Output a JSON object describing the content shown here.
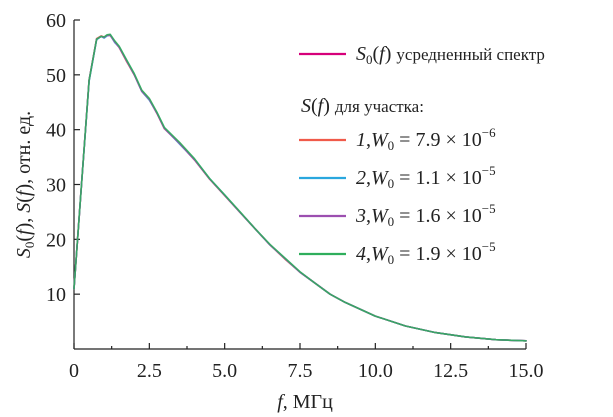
{
  "chart_data": {
    "type": "line",
    "xlabel_italic": "f",
    "xlabel_rest": ", МГц",
    "ylabel": "S0(f), S(f), отн. ед.",
    "xlim": [
      0,
      15
    ],
    "ylim": [
      0,
      60
    ],
    "x_ticks": [
      {
        "value": 0,
        "label": "0"
      },
      {
        "value": 2.5,
        "label": "2.5"
      },
      {
        "value": 5,
        "label": "5.0"
      },
      {
        "value": 7.5,
        "label": "7.5"
      },
      {
        "value": 10,
        "label": "10.0"
      },
      {
        "value": 12.5,
        "label": "12.5"
      },
      {
        "value": 15,
        "label": "15.0"
      }
    ],
    "y_ticks": [
      {
        "value": 10,
        "label": "10"
      },
      {
        "value": 20,
        "label": "20"
      },
      {
        "value": 30,
        "label": "30"
      },
      {
        "value": 40,
        "label": "40"
      },
      {
        "value": 50,
        "label": "50"
      },
      {
        "value": 60,
        "label": "60"
      }
    ],
    "x": [
      0,
      0.25,
      0.5,
      0.75,
      0.9,
      1.0,
      1.1,
      1.2,
      1.35,
      1.5,
      1.75,
      2.0,
      2.25,
      2.5,
      2.75,
      3.0,
      3.5,
      4.0,
      4.5,
      5.0,
      5.5,
      6.0,
      6.5,
      7.0,
      7.5,
      8.0,
      8.5,
      9.0,
      10.0,
      11.0,
      12.0,
      13.0,
      14.0,
      15.0
    ],
    "series": [
      {
        "name": "S0(f) усредненный спектр",
        "color": "#d6007a",
        "values": [
          11,
          30,
          49,
          56.5,
          57,
          56.8,
          57.2,
          57.3,
          56,
          55,
          52.5,
          50,
          47,
          45.5,
          43,
          40.2,
          37.5,
          34.5,
          31,
          28,
          25,
          22,
          19,
          16.5,
          14,
          12,
          10,
          8.5,
          6,
          4.2,
          3,
          2.2,
          1.7,
          1.5
        ]
      },
      {
        "name": "1",
        "color": "#f05a4a",
        "values": [
          11,
          30,
          49,
          56.6,
          57.1,
          56.9,
          57.2,
          57.2,
          56.1,
          55,
          52.4,
          50,
          47.1,
          45.6,
          43,
          40.2,
          37.6,
          34.5,
          31,
          28,
          25,
          22,
          19,
          16.4,
          14,
          12,
          10,
          8.5,
          6,
          4.2,
          3,
          2.2,
          1.7,
          1.5
        ]
      },
      {
        "name": "2",
        "color": "#2aa7de",
        "values": [
          11,
          30,
          48.8,
          56.4,
          57,
          56.7,
          57.1,
          57.3,
          55.9,
          55.1,
          52.6,
          50.1,
          47,
          45.4,
          43.1,
          40.3,
          37.4,
          34.6,
          31.1,
          28.1,
          25,
          22,
          19,
          16.5,
          14,
          12,
          10,
          8.5,
          6,
          4.2,
          3,
          2.2,
          1.7,
          1.5
        ]
      },
      {
        "name": "3",
        "color": "#9c4fb0",
        "values": [
          11,
          30,
          49.1,
          56.5,
          57,
          56.8,
          57.2,
          57.2,
          56,
          55,
          52.5,
          50,
          47,
          45.5,
          43,
          40.2,
          37.5,
          34.5,
          31,
          28,
          25,
          22,
          19,
          16.5,
          14,
          12,
          10,
          8.5,
          6,
          4.2,
          3,
          2.2,
          1.7,
          1.5
        ]
      },
      {
        "name": "4",
        "color": "#2fae5c",
        "values": [
          11,
          30,
          49,
          56.5,
          57,
          56.9,
          57.3,
          57.4,
          56.2,
          55.2,
          52.7,
          50.2,
          47.2,
          45.7,
          43.2,
          40.4,
          37.7,
          34.7,
          31.1,
          28.1,
          25.1,
          22,
          19.1,
          16.6,
          14.1,
          12,
          10,
          8.5,
          6,
          4.2,
          3,
          2.2,
          1.7,
          1.5
        ]
      }
    ],
    "legend": {
      "main_label": "усредненный спектр",
      "group_title": "для участка:",
      "entries": [
        {
          "num": "1",
          "mant": "7.9",
          "exp": "−6"
        },
        {
          "num": "2",
          "mant": "1.1",
          "exp": "−5"
        },
        {
          "num": "3",
          "mant": "1.6",
          "exp": "−5"
        },
        {
          "num": "4",
          "mant": "1.9",
          "exp": "−5"
        }
      ]
    }
  }
}
